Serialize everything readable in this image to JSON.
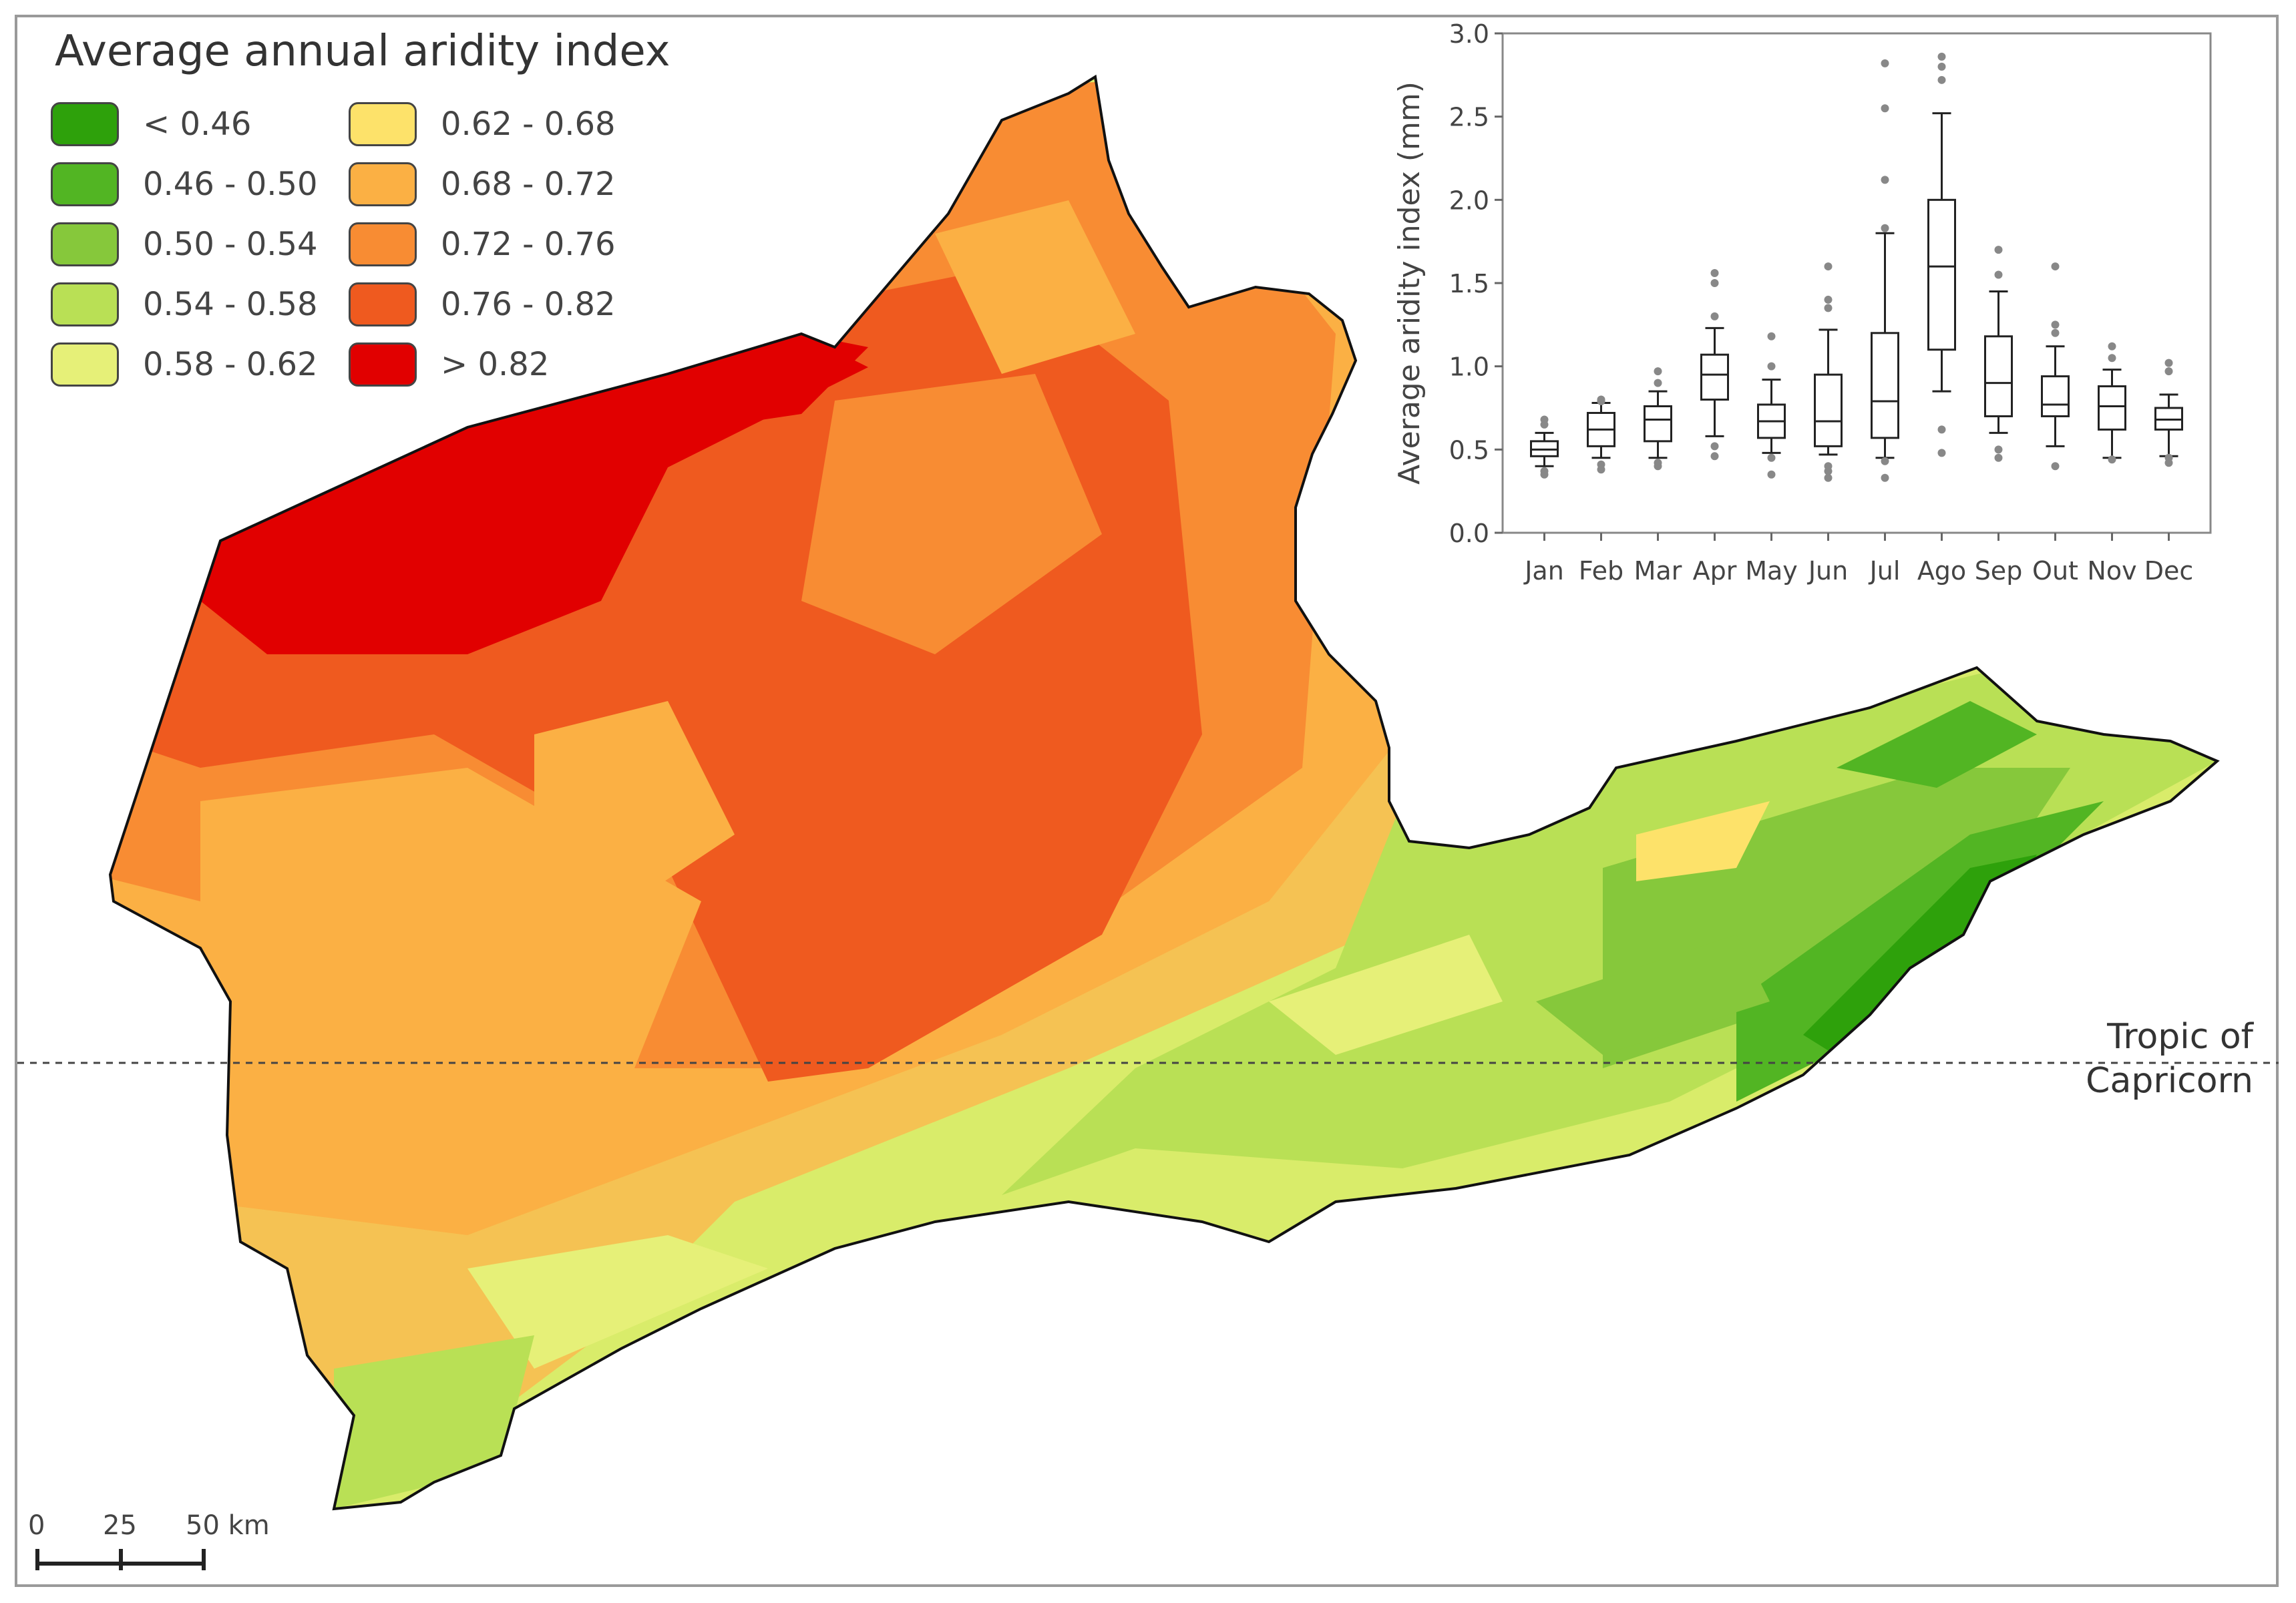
{
  "legend": {
    "title": "Average annual aridity index",
    "items": [
      {
        "label": "< 0.46",
        "color": "#2ea10b"
      },
      {
        "label": "0.46 - 0.50",
        "color": "#52b523"
      },
      {
        "label": "0.50 - 0.54",
        "color": "#86c83b"
      },
      {
        "label": "0.54 - 0.58",
        "color": "#b9e055"
      },
      {
        "label": "0.58 - 0.62",
        "color": "#e6f078"
      },
      {
        "label": "0.62 - 0.68",
        "color": "#fde26a"
      },
      {
        "label": "0.68 - 0.72",
        "color": "#fbb044"
      },
      {
        "label": "0.72 - 0.76",
        "color": "#f88c33"
      },
      {
        "label": "0.76 - 0.82",
        "color": "#ef5a1f"
      },
      {
        "label": "> 0.82",
        "color": "#e10000"
      }
    ]
  },
  "scale_bar": {
    "labels": [
      "0",
      "25",
      "50 km"
    ]
  },
  "tropic_label": [
    "Tropic of",
    "Capricorn"
  ],
  "chart_data": {
    "type": "box",
    "ylabel": "Average aridity index (mm)",
    "ylim": [
      0,
      3.0
    ],
    "yticks": [
      "0.0",
      "0.5",
      "1.0",
      "1.5",
      "2.0",
      "2.5",
      "3.0"
    ],
    "categories": [
      "Jan",
      "Feb",
      "Mar",
      "Apr",
      "May",
      "Jun",
      "Jul",
      "Ago",
      "Sep",
      "Out",
      "Nov",
      "Dec"
    ],
    "boxes": [
      {
        "min": 0.4,
        "q1": 0.46,
        "median": 0.5,
        "q3": 0.55,
        "max": 0.6,
        "outliers": [
          0.35,
          0.37,
          0.65,
          0.68
        ]
      },
      {
        "min": 0.45,
        "q1": 0.52,
        "median": 0.62,
        "q3": 0.72,
        "max": 0.78,
        "outliers": [
          0.38,
          0.41,
          0.79,
          0.8
        ]
      },
      {
        "min": 0.45,
        "q1": 0.55,
        "median": 0.68,
        "q3": 0.76,
        "max": 0.85,
        "outliers": [
          0.4,
          0.42,
          0.9,
          0.97
        ]
      },
      {
        "min": 0.58,
        "q1": 0.8,
        "median": 0.95,
        "q3": 1.07,
        "max": 1.23,
        "outliers": [
          0.46,
          0.52,
          1.3,
          1.5,
          1.56
        ]
      },
      {
        "min": 0.48,
        "q1": 0.57,
        "median": 0.67,
        "q3": 0.77,
        "max": 0.92,
        "outliers": [
          0.35,
          0.45,
          1.0,
          1.18
        ]
      },
      {
        "min": 0.47,
        "q1": 0.52,
        "median": 0.67,
        "q3": 0.95,
        "max": 1.22,
        "outliers": [
          0.33,
          0.37,
          0.4,
          1.35,
          1.4,
          1.6
        ]
      },
      {
        "min": 0.45,
        "q1": 0.57,
        "median": 0.79,
        "q3": 1.2,
        "max": 1.8,
        "outliers": [
          0.33,
          0.43,
          1.83,
          2.12,
          2.55,
          2.82
        ]
      },
      {
        "min": 0.85,
        "q1": 1.1,
        "median": 1.6,
        "q3": 2.0,
        "max": 2.52,
        "outliers": [
          0.48,
          0.62,
          2.72,
          2.8,
          2.86
        ]
      },
      {
        "min": 0.6,
        "q1": 0.7,
        "median": 0.9,
        "q3": 1.18,
        "max": 1.45,
        "outliers": [
          0.45,
          0.5,
          1.55,
          1.7
        ]
      },
      {
        "min": 0.52,
        "q1": 0.7,
        "median": 0.77,
        "q3": 0.94,
        "max": 1.12,
        "outliers": [
          0.4,
          1.2,
          1.25,
          1.6
        ]
      },
      {
        "min": 0.45,
        "q1": 0.62,
        "median": 0.76,
        "q3": 0.88,
        "max": 0.98,
        "outliers": [
          0.44,
          1.05,
          1.12
        ]
      },
      {
        "min": 0.46,
        "q1": 0.62,
        "median": 0.68,
        "q3": 0.75,
        "max": 0.83,
        "outliers": [
          0.42,
          0.45,
          0.97,
          1.02
        ]
      }
    ]
  }
}
